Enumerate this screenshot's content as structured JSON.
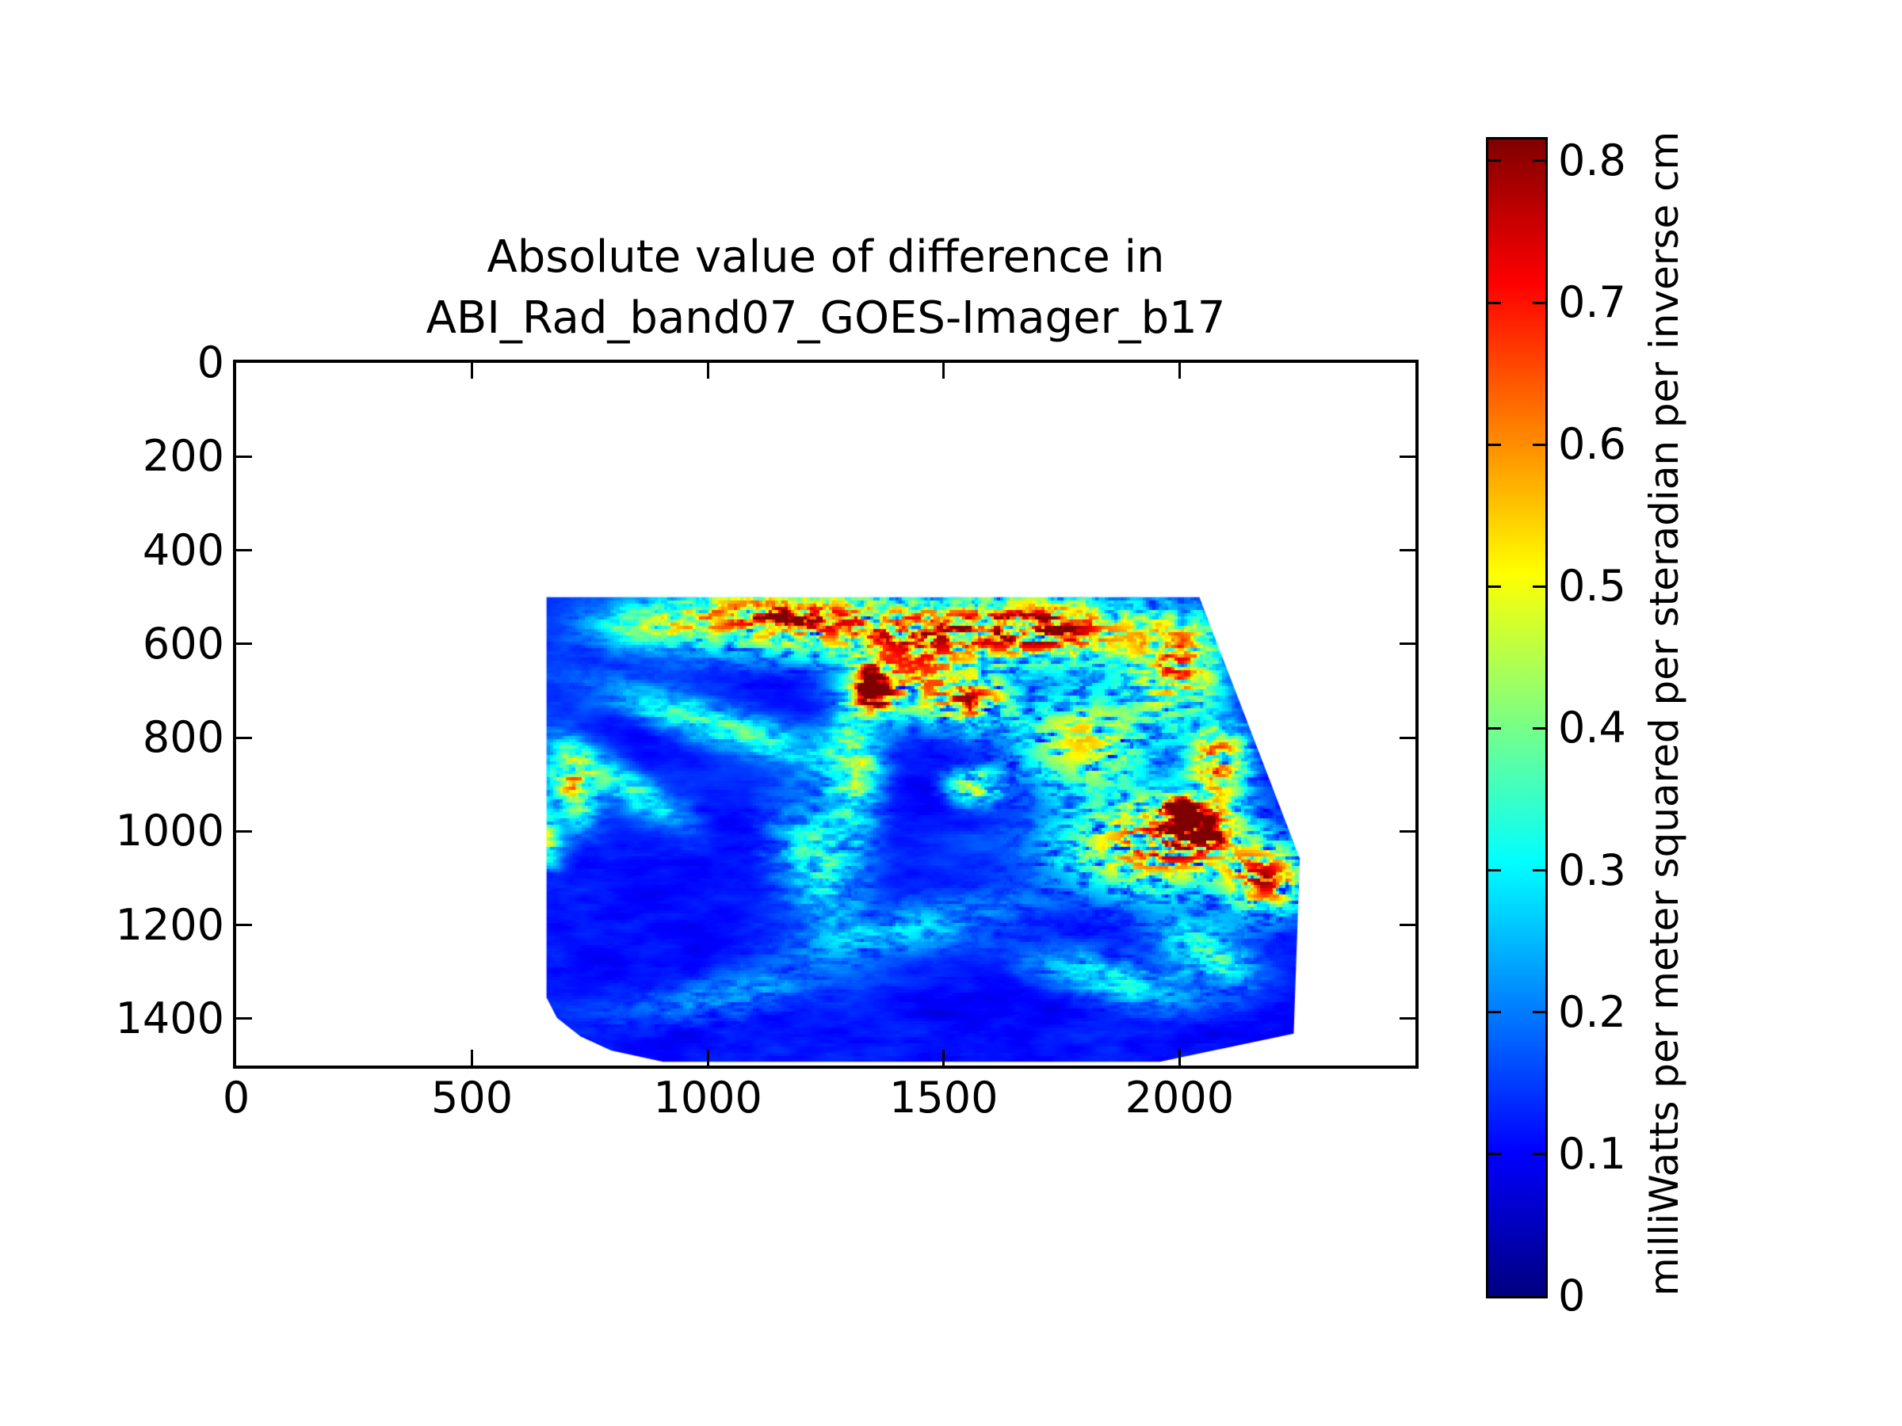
{
  "title": {
    "line1": "Absolute value of difference in",
    "line2": "ABI_Rad_band07_GOES-Imager_b17"
  },
  "axes": {
    "x_ticks": [
      0,
      500,
      1000,
      1500,
      2000
    ],
    "y_ticks": [
      0,
      200,
      400,
      600,
      800,
      1000,
      1200,
      1400
    ],
    "x_range": [
      0,
      2500
    ],
    "y_range": [
      0,
      1500
    ],
    "y_inverted": true
  },
  "colorbar": {
    "tick_labels": [
      "0.8",
      "0.7",
      "0.6",
      "0.5",
      "0.4",
      "0.3",
      "0.2",
      "0.1",
      "0"
    ],
    "tick_values": [
      0.8,
      0.7,
      0.6,
      0.5,
      0.4,
      0.3,
      0.2,
      0.1,
      0
    ],
    "label": "milliWatts per meter squared per steradian per inverse cm",
    "vmin": 0,
    "vmax": 0.815,
    "colormap": "jet",
    "gradient_stops": [
      [
        0,
        "#000080"
      ],
      [
        12.5,
        "#0000ff"
      ],
      [
        37.5,
        "#00ffff"
      ],
      [
        62.5,
        "#ffff00"
      ],
      [
        87.5,
        "#ff0000"
      ],
      [
        100,
        "#800000"
      ]
    ]
  },
  "chart_data": {
    "type": "heatmap",
    "title": "Absolute value of difference in ABI_Rad_band07_GOES-Imager_b17",
    "colormap": "jet",
    "vmin": 0,
    "vmax": 0.815,
    "x_range": [
      0,
      2500
    ],
    "y_range": [
      0,
      1500
    ],
    "y_inverted": true,
    "x_ticks": [
      0,
      500,
      1000,
      1500,
      2000
    ],
    "y_ticks": [
      0,
      200,
      400,
      600,
      800,
      1000,
      1200,
      1400
    ],
    "colorbar_ticks": [
      0,
      0.1,
      0.2,
      0.3,
      0.4,
      0.5,
      0.6,
      0.7,
      0.8
    ],
    "colorbar_label": "milliWatts per meter squared per steradian per inverse cm",
    "background_value_range": [
      0.03,
      0.17
    ],
    "swath_polygon": [
      [
        658,
        500
      ],
      [
        2042,
        500
      ],
      [
        2255,
        1058
      ],
      [
        2242,
        1432
      ],
      [
        1958,
        1492
      ],
      [
        905,
        1492
      ],
      [
        795,
        1468
      ],
      [
        730,
        1438
      ],
      [
        680,
        1398
      ],
      [
        658,
        1355
      ]
    ],
    "features": [
      {
        "x": 1380,
        "y": 565,
        "rx": 430,
        "ry": 80,
        "amp": 0.36,
        "sp": 1.0,
        "rot": 0
      },
      {
        "x": 1120,
        "y": 535,
        "rx": 190,
        "ry": 55,
        "amp": 0.28,
        "sp": 0.8,
        "rot": 0
      },
      {
        "x": 1720,
        "y": 570,
        "rx": 210,
        "ry": 85,
        "amp": 0.34,
        "sp": 1.0,
        "rot": 0
      },
      {
        "x": 880,
        "y": 560,
        "rx": 150,
        "ry": 55,
        "amp": 0.2,
        "sp": 0.5,
        "rot": 0
      },
      {
        "x": 1010,
        "y": 770,
        "rx": 270,
        "ry": 50,
        "amp": 0.2,
        "sp": 0.6,
        "rot": -18
      },
      {
        "x": 830,
        "y": 910,
        "rx": 170,
        "ry": 45,
        "amp": 0.17,
        "sp": 0.6,
        "rot": -32
      },
      {
        "x": 715,
        "y": 905,
        "rx": 55,
        "ry": 95,
        "amp": 0.32,
        "sp": 0.8,
        "rot": 14
      },
      {
        "x": 650,
        "y": 1010,
        "rx": 40,
        "ry": 75,
        "amp": 0.27,
        "sp": 0.8,
        "rot": 18
      },
      {
        "x": 1310,
        "y": 870,
        "rx": 70,
        "ry": 170,
        "amp": 0.24,
        "sp": 0.7,
        "rot": 0
      },
      {
        "x": 1230,
        "y": 1060,
        "rx": 95,
        "ry": 150,
        "amp": 0.2,
        "sp": 0.7,
        "rot": 24
      },
      {
        "x": 1345,
        "y": 690,
        "rx": 24,
        "ry": 32,
        "amp": 0.7,
        "sp": 0.3,
        "rot": 0
      },
      {
        "x": 1352,
        "y": 702,
        "rx": 48,
        "ry": 58,
        "amp": 0.42,
        "sp": 0.5,
        "rot": 0
      },
      {
        "x": 1430,
        "y": 680,
        "rx": 135,
        "ry": 90,
        "amp": 0.33,
        "sp": 1.0,
        "rot": 0
      },
      {
        "x": 1565,
        "y": 725,
        "rx": 95,
        "ry": 62,
        "amp": 0.38,
        "sp": 1.0,
        "rot": 0
      },
      {
        "x": 1995,
        "y": 645,
        "rx": 115,
        "ry": 125,
        "amp": 0.38,
        "sp": 0.8,
        "rot": 0
      },
      {
        "x": 2085,
        "y": 855,
        "rx": 75,
        "ry": 95,
        "amp": 0.4,
        "sp": 0.8,
        "rot": 0
      },
      {
        "x": 1800,
        "y": 805,
        "rx": 170,
        "ry": 125,
        "amp": 0.28,
        "sp": 1.2,
        "rot": 0
      },
      {
        "x": 1565,
        "y": 905,
        "rx": 65,
        "ry": 42,
        "amp": 0.33,
        "sp": 1.0,
        "rot": 0
      },
      {
        "x": 2000,
        "y": 955,
        "rx": 32,
        "ry": 24,
        "amp": 0.72,
        "sp": 0.35,
        "rot": 0
      },
      {
        "x": 2068,
        "y": 1008,
        "rx": 24,
        "ry": 18,
        "amp": 0.66,
        "sp": 0.35,
        "rot": 0
      },
      {
        "x": 2012,
        "y": 992,
        "rx": 95,
        "ry": 62,
        "amp": 0.46,
        "sp": 0.7,
        "rot": 0
      },
      {
        "x": 1955,
        "y": 1035,
        "rx": 230,
        "ry": 115,
        "amp": 0.36,
        "sp": 1.3,
        "rot": 0
      },
      {
        "x": 2185,
        "y": 1105,
        "rx": 95,
        "ry": 85,
        "amp": 0.38,
        "sp": 1.2,
        "rot": 0
      },
      {
        "x": 2060,
        "y": 1265,
        "rx": 125,
        "ry": 70,
        "amp": 0.2,
        "sp": 0.8,
        "rot": -28
      },
      {
        "x": 1860,
        "y": 1320,
        "rx": 210,
        "ry": 60,
        "amp": 0.16,
        "sp": 0.7,
        "rot": -14
      },
      {
        "x": 1420,
        "y": 1210,
        "rx": 310,
        "ry": 65,
        "amp": 0.11,
        "sp": 0.8,
        "rot": 12
      },
      {
        "x": 1020,
        "y": 1360,
        "rx": 260,
        "ry": 55,
        "amp": 0.09,
        "sp": 0.8,
        "rot": 8
      }
    ]
  }
}
